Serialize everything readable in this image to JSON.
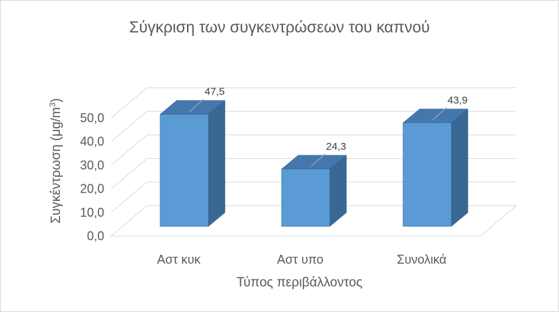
{
  "chart_data": {
    "type": "bar",
    "title": "Σύγκριση των συγκεντρώσεων του καπνού",
    "xlabel": "Τύπος περιβάλλοντος",
    "ylabel_main": "Συγκέντρωση (μg/m",
    "ylabel_sup": "3",
    "ylabel_close": ")",
    "categories": [
      "Αστ κυκ",
      "Αστ υπο",
      "Συνολικά"
    ],
    "values": [
      47.5,
      24.3,
      43.9
    ],
    "data_labels": [
      "47,5",
      "24,3",
      "43,9"
    ],
    "yticks": [
      0,
      10,
      20,
      30,
      40,
      50
    ],
    "ytick_labels": [
      "0,0",
      "10,0",
      "20,0",
      "30,0",
      "40,0",
      "50,0"
    ],
    "ylim": [
      0,
      50
    ],
    "grid": true,
    "style": "3d-column",
    "colors": {
      "bar_front": "#5b9bd5",
      "bar_top": "#4478ad",
      "bar_side": "#3a6894",
      "bar_edge": "#2f5f8f",
      "grid": "#d9d9d9",
      "leader": "#a6a6a6"
    }
  }
}
